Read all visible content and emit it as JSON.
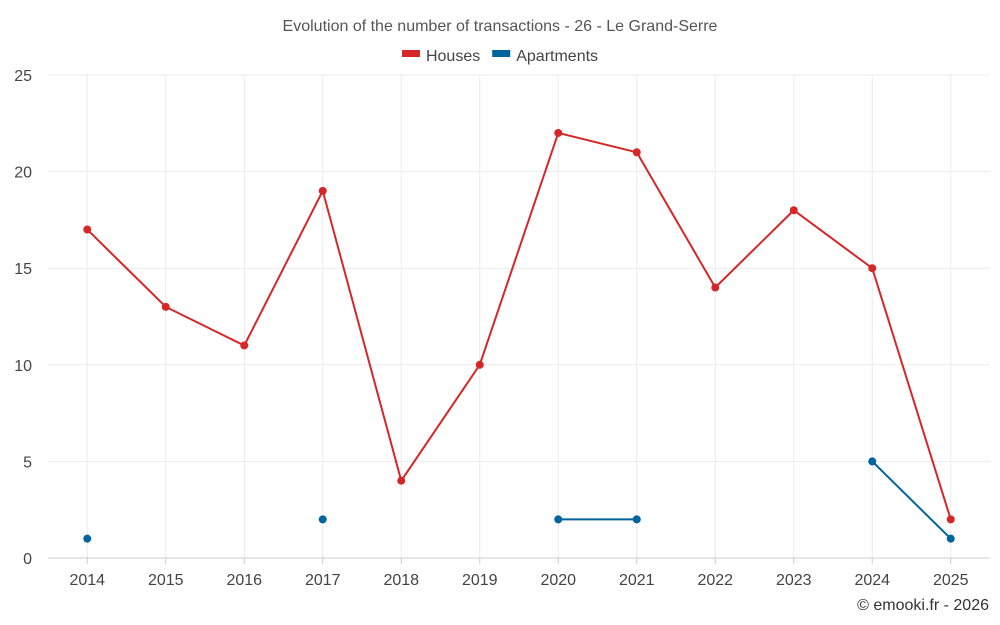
{
  "chart_data": {
    "type": "line",
    "title": "Evolution of the number of transactions - 26 - Le Grand-Serre",
    "categories": [
      "2014",
      "2015",
      "2016",
      "2017",
      "2018",
      "2019",
      "2020",
      "2021",
      "2022",
      "2023",
      "2024",
      "2025"
    ],
    "ylim": [
      0,
      25
    ],
    "yticks": [
      0,
      5,
      10,
      15,
      20,
      25
    ],
    "grid": true,
    "legend_position": "top-center",
    "series": [
      {
        "name": "Houses",
        "color": "#d62728",
        "values": [
          17,
          13,
          11,
          19,
          4,
          10,
          22,
          21,
          14,
          18,
          15,
          2
        ]
      },
      {
        "name": "Apartments",
        "color": "#00649e",
        "values": [
          1,
          null,
          null,
          2,
          null,
          null,
          2,
          2,
          null,
          null,
          5,
          1
        ]
      }
    ],
    "xlabel": "",
    "ylabel": ""
  },
  "credit": "© emooki.fr - 2026"
}
